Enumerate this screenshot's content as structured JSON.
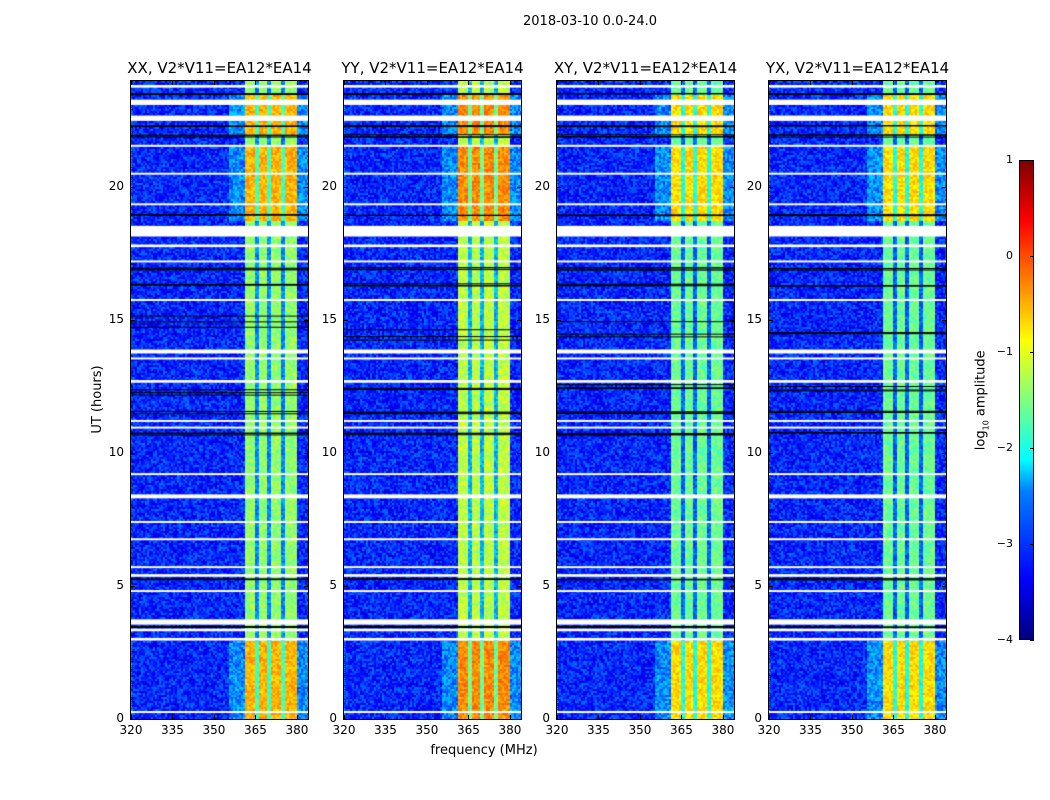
{
  "chart_data": {
    "type": "heatmap",
    "title": "2018-03-10 0.0-24.0",
    "xlabel": "frequency (MHz)",
    "ylabel": "UT (hours)",
    "xlim": [
      320,
      384
    ],
    "ylim": [
      0,
      24
    ],
    "xticks": [
      320,
      335,
      350,
      365,
      380
    ],
    "yticks": [
      0,
      5,
      10,
      15,
      20
    ],
    "panels": [
      {
        "title": "XX, V2*V11=EA12*EA14",
        "band_level": -1.1
      },
      {
        "title": "YY, V2*V11=EA12*EA14",
        "band_level": -0.9
      },
      {
        "title": "XY, V2*V11=EA12*EA14",
        "band_level": -1.3
      },
      {
        "title": "YX, V2*V11=EA12*EA14",
        "band_level": -1.3
      }
    ],
    "background_level": -3.2,
    "bright_band_mhz": [
      360.5,
      380
    ],
    "channel_gaps_mhz": [
      365,
      369.7,
      374.7
    ],
    "strong_periods_hours": [
      [
        0,
        3
      ],
      [
        18.8,
        21.6
      ],
      [
        22,
        23.5
      ]
    ],
    "flagged_hours": [
      [
        23.75,
        23.85
      ],
      [
        23.1,
        23.3
      ],
      [
        22.5,
        22.7
      ],
      [
        21.55,
        21.6
      ],
      [
        20.5,
        20.55
      ],
      [
        19.35,
        19.4
      ],
      [
        18.15,
        18.55
      ],
      [
        17.75,
        17.85
      ],
      [
        17.2,
        17.25
      ],
      [
        15.75,
        15.8
      ],
      [
        13.75,
        13.9
      ],
      [
        13.55,
        13.6
      ],
      [
        12.65,
        12.75
      ],
      [
        11.2,
        11.25
      ],
      [
        10.95,
        11.0
      ],
      [
        9.2,
        9.25
      ],
      [
        8.3,
        8.45
      ],
      [
        7.4,
        7.45
      ],
      [
        6.75,
        6.8
      ],
      [
        5.7,
        5.75
      ],
      [
        5.35,
        5.45
      ],
      [
        4.8,
        4.85
      ],
      [
        3.55,
        3.75
      ],
      [
        3.3,
        3.4
      ],
      [
        2.95,
        3.05
      ],
      [
        0.25,
        0.3
      ]
    ],
    "dark_rows_hours": [
      [
        23.5,
        23.55
      ],
      [
        22.3,
        22.35
      ],
      [
        21.9,
        22.0
      ],
      [
        18.95,
        19.0
      ],
      [
        16.9,
        17.0
      ],
      [
        16.3,
        16.4
      ],
      [
        14.2,
        15.2
      ],
      [
        12.2,
        12.6
      ],
      [
        11.5,
        11.6
      ],
      [
        10.7,
        10.8
      ],
      [
        5.25,
        5.3
      ],
      [
        3.45,
        3.5
      ]
    ],
    "colorbar": {
      "label_main": "log",
      "label_sub": "10",
      "label_rest": " amplitude",
      "range": [
        -4,
        1
      ],
      "ticks": [
        "1",
        "0",
        "−1",
        "−2",
        "−3",
        "−4"
      ],
      "tick_values": [
        1,
        0,
        -1,
        -2,
        -3,
        -4
      ],
      "colormap": "jet"
    }
  }
}
